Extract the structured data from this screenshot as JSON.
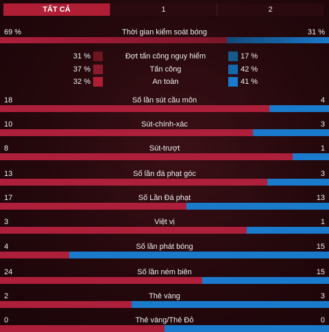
{
  "tabs": [
    "TẤT CẢ",
    "1",
    "2"
  ],
  "active_tab": 0,
  "colors": {
    "home": "#ae1f3c",
    "away": "#1a7acb"
  },
  "possession": {
    "label": "Thời gian kiểm soát bóng",
    "home": "69 %",
    "away": "31 %",
    "home_fraction": 0.69
  },
  "attacks": [
    {
      "label": "Đợt tấn công nguy hiểm",
      "home": "31 %",
      "away": "17 %",
      "home_color": "#6e1522",
      "away_color": "#145a8a"
    },
    {
      "label": "Tấn công",
      "home": "37 %",
      "away": "42 %",
      "home_color": "#8a1a2c",
      "away_color": "#1669a8"
    },
    {
      "label": "An toàn",
      "home": "32 %",
      "away": "41 %",
      "home_color": "#b01e35",
      "away_color": "#1a7acb"
    }
  ],
  "stats": [
    {
      "label": "Số lần sút cầu môn",
      "home": 18,
      "away": 4
    },
    {
      "label": "Sút-chính-xác",
      "home": 10,
      "away": 3
    },
    {
      "label": "Sút-trượt",
      "home": 8,
      "away": 1
    },
    {
      "label": "Số lần đá phạt góc",
      "home": 13,
      "away": 3
    },
    {
      "label": "Số Lần Đá phạt",
      "home": 17,
      "away": 13
    },
    {
      "label": "Việt vị",
      "home": 3,
      "away": 1
    },
    {
      "label": "Số lần phát bóng",
      "home": 4,
      "away": 15
    },
    {
      "label": "Số lần ném biên",
      "home": 24,
      "away": 15
    },
    {
      "label": "Thẻ vàng",
      "home": 2,
      "away": 3
    },
    {
      "label": "Thẻ vàng/Thẻ Đỏ",
      "home": 0,
      "away": 0
    }
  ]
}
